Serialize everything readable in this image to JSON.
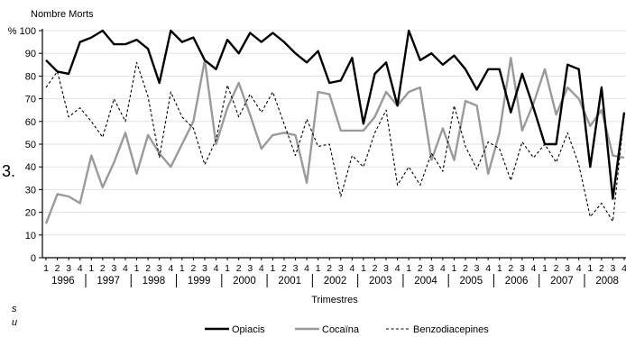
{
  "chart_data": {
    "type": "line",
    "ylabel": "Nombre Morts",
    "xlabel": "Trimestres",
    "ylim": [
      0,
      100
    ],
    "y_ticks": [
      "% 100",
      "90",
      "80",
      "70",
      "60",
      "50",
      "40",
      "30",
      "20",
      "10",
      "0"
    ],
    "quarter_labels": [
      "1",
      "2",
      "3",
      "4"
    ],
    "years": [
      "1996",
      "1997",
      "1998",
      "1999",
      "2000",
      "2001",
      "2002",
      "2003",
      "2004",
      "2005",
      "2006",
      "2007",
      "2008"
    ],
    "series": [
      {
        "name": "Opiacis",
        "style": "solid-thick",
        "color": "#000000",
        "values": [
          87,
          82,
          81,
          95,
          97,
          100,
          94,
          94,
          96,
          92,
          77,
          100,
          95,
          97,
          87,
          83,
          96,
          90,
          99,
          95,
          99,
          95,
          90,
          86,
          91,
          77,
          78,
          88,
          59,
          81,
          86,
          67,
          100,
          87,
          90,
          85,
          89,
          83,
          74,
          83,
          83,
          64,
          81,
          66,
          50,
          50,
          85,
          83,
          40,
          75,
          26,
          64
        ]
      },
      {
        "name": "Cocaïna",
        "style": "solid-grey",
        "color": "#9a9a9a",
        "values": [
          15,
          28,
          27,
          24,
          45,
          31,
          42,
          55,
          37,
          54,
          46,
          40,
          50,
          60,
          87,
          50,
          66,
          77,
          63,
          48,
          54,
          55,
          54,
          33,
          73,
          72,
          56,
          56,
          56,
          62,
          73,
          67,
          73,
          75,
          43,
          57,
          43,
          69,
          67,
          37,
          55,
          88,
          56,
          68,
          83,
          63,
          75,
          70,
          58,
          65,
          45,
          44
        ]
      },
      {
        "name": "Benzodiacepines",
        "style": "dashed",
        "color": "#000000",
        "values": [
          75,
          82,
          62,
          66,
          60,
          53,
          70,
          60,
          86,
          71,
          44,
          73,
          62,
          57,
          41,
          52,
          76,
          62,
          72,
          64,
          73,
          59,
          45,
          61,
          49,
          50,
          27,
          45,
          40,
          55,
          65,
          32,
          40,
          32,
          46,
          38,
          67,
          49,
          39,
          51,
          48,
          34,
          51,
          44,
          50,
          42,
          55,
          41,
          18,
          24,
          16,
          63
        ]
      }
    ]
  },
  "page_fragments": {
    "left_mark": "3.",
    "bottom_left_a": "s",
    "bottom_left_b": "u"
  },
  "colors": {
    "axis": "#000000",
    "grey_series": "#9a9a9a"
  }
}
